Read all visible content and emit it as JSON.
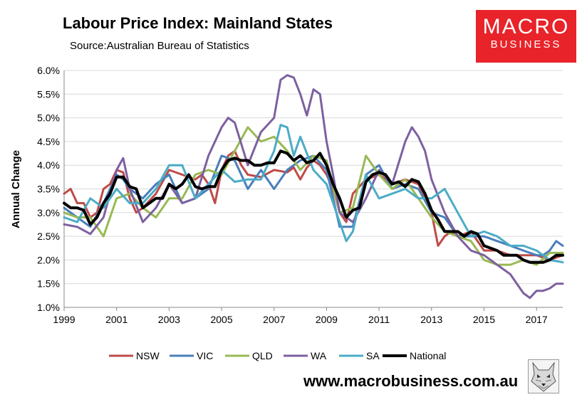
{
  "header": {
    "title": "Labour Price Index: Mainland States",
    "source": "Source:Australian Bureau of Statistics"
  },
  "logo": {
    "line1": "MACRO",
    "line2": "BUSINESS"
  },
  "footer": {
    "website": "www.macrobusiness.com.au",
    "mascot_icon": "wolf-sketch-icon"
  },
  "chart_data": {
    "type": "line",
    "title": "Labour Price Index: Mainland States",
    "ylabel": "Annual Change",
    "xlabel": "",
    "xlim": [
      1999,
      2018
    ],
    "ylim": [
      1.0,
      6.0
    ],
    "yticks": [
      "1.0%",
      "1.5%",
      "2.0%",
      "2.5%",
      "3.0%",
      "3.5%",
      "4.0%",
      "4.5%",
      "5.0%",
      "5.5%",
      "6.0%"
    ],
    "ytick_values": [
      1.0,
      1.5,
      2.0,
      2.5,
      3.0,
      3.5,
      4.0,
      4.5,
      5.0,
      5.5,
      6.0
    ],
    "xticks": [
      "1999",
      "2001",
      "2003",
      "2005",
      "2007",
      "2009",
      "2011",
      "2013",
      "2015",
      "2017"
    ],
    "xtick_values": [
      1999,
      2001,
      2003,
      2005,
      2007,
      2009,
      2011,
      2013,
      2015,
      2017
    ],
    "grid": "horizontal",
    "legend_position": "bottom",
    "series": [
      {
        "name": "NSW",
        "color": "#be4b48",
        "width": 3,
        "x": [
          1999,
          1999.25,
          1999.5,
          1999.75,
          2000,
          2000.25,
          2000.5,
          2000.75,
          2001,
          2001.25,
          2001.5,
          2001.75,
          2002,
          2002.5,
          2003,
          2003.5,
          2004,
          2004.25,
          2004.5,
          2004.75,
          2005,
          2005.25,
          2005.5,
          2005.75,
          2006,
          2006.5,
          2007,
          2007.5,
          2007.75,
          2008,
          2008.25,
          2008.5,
          2008.75,
          2009,
          2009.25,
          2009.5,
          2009.75,
          2010,
          2010.5,
          2011,
          2011.5,
          2012,
          2012.5,
          2013,
          2013.25,
          2013.5,
          2013.75,
          2014,
          2014.5,
          2015,
          2015.5,
          2016,
          2016.5,
          2017,
          2017.5,
          2018
        ],
        "values": [
          3.4,
          3.5,
          3.2,
          3.2,
          2.9,
          3.0,
          3.5,
          3.6,
          3.9,
          3.85,
          3.3,
          3.0,
          3.1,
          3.4,
          3.9,
          3.8,
          3.7,
          3.8,
          3.6,
          3.2,
          3.9,
          4.2,
          4.3,
          4.0,
          3.8,
          3.75,
          3.9,
          3.85,
          3.95,
          3.7,
          3.95,
          4.1,
          4.0,
          3.8,
          3.5,
          3.0,
          2.8,
          3.4,
          3.7,
          3.8,
          3.6,
          3.7,
          3.6,
          3.0,
          2.3,
          2.5,
          2.6,
          2.5,
          2.6,
          2.2,
          2.2,
          2.1,
          2.1,
          2.1,
          2.0,
          2.1
        ]
      },
      {
        "name": "VIC",
        "color": "#4a7ebb",
        "width": 3,
        "x": [
          1999,
          1999.5,
          2000,
          2000.5,
          2001,
          2001.25,
          2001.5,
          2002,
          2002.5,
          2003,
          2003.5,
          2004,
          2004.5,
          2005,
          2005.5,
          2006,
          2006.5,
          2007,
          2007.5,
          2008,
          2008.5,
          2009,
          2009.5,
          2010,
          2010.5,
          2011,
          2011.5,
          2012,
          2012.5,
          2013,
          2013.5,
          2014,
          2014.5,
          2015,
          2015.5,
          2016,
          2016.5,
          2017,
          2017.25,
          2017.5,
          2017.75,
          2018
        ],
        "values": [
          3.1,
          2.9,
          2.7,
          3.2,
          3.8,
          3.7,
          3.5,
          3.3,
          3.6,
          3.8,
          3.2,
          3.3,
          3.5,
          4.2,
          4.1,
          3.5,
          3.9,
          3.5,
          3.9,
          4.1,
          4.2,
          3.9,
          2.7,
          2.7,
          3.8,
          4.0,
          3.5,
          3.6,
          3.5,
          3.0,
          2.9,
          2.5,
          2.5,
          2.5,
          2.4,
          2.3,
          2.2,
          2.1,
          2.1,
          2.2,
          2.4,
          2.3
        ]
      },
      {
        "name": "QLD",
        "color": "#98b954",
        "width": 3,
        "x": [
          1999,
          1999.5,
          2000,
          2000.5,
          2001,
          2001.5,
          2002,
          2002.5,
          2003,
          2003.5,
          2004,
          2004.5,
          2005,
          2005.5,
          2006,
          2006.5,
          2007,
          2007.5,
          2008,
          2008.5,
          2009,
          2009.5,
          2010,
          2010.5,
          2011,
          2011.5,
          2012,
          2012.5,
          2013,
          2013.5,
          2014,
          2014.5,
          2015,
          2015.5,
          2016,
          2016.5,
          2017,
          2017.5,
          2018
        ],
        "values": [
          3.0,
          2.9,
          2.9,
          2.5,
          3.3,
          3.4,
          3.1,
          2.9,
          3.3,
          3.3,
          3.8,
          3.9,
          3.8,
          4.3,
          4.8,
          4.5,
          4.6,
          4.3,
          3.9,
          4.2,
          4.1,
          3.0,
          3.1,
          4.2,
          3.8,
          3.5,
          3.7,
          3.3,
          2.9,
          2.6,
          2.5,
          2.4,
          2.0,
          1.9,
          1.9,
          2.0,
          1.9,
          2.15,
          2.15
        ]
      },
      {
        "name": "WA",
        "color": "#7d60a0",
        "width": 3,
        "x": [
          1999,
          1999.5,
          2000,
          2000.5,
          2001,
          2001.25,
          2001.5,
          2002,
          2002.5,
          2003,
          2003.5,
          2004,
          2004.5,
          2005,
          2005.25,
          2005.5,
          2006,
          2006.5,
          2007,
          2007.25,
          2007.5,
          2007.75,
          2008,
          2008.25,
          2008.5,
          2008.75,
          2009,
          2009.25,
          2009.5,
          2010,
          2010.5,
          2011,
          2011.5,
          2012,
          2012.25,
          2012.5,
          2012.75,
          2013,
          2013.5,
          2014,
          2014.5,
          2015,
          2015.5,
          2016,
          2016.5,
          2016.75,
          2017,
          2017.25,
          2017.5,
          2017.75,
          2018
        ],
        "values": [
          2.75,
          2.7,
          2.55,
          2.9,
          3.9,
          4.15,
          3.5,
          2.8,
          3.1,
          3.6,
          3.2,
          3.3,
          4.2,
          4.8,
          5.0,
          4.9,
          4.0,
          4.7,
          5.0,
          5.8,
          5.9,
          5.85,
          5.5,
          5.05,
          5.6,
          5.5,
          4.5,
          3.8,
          3.0,
          2.8,
          3.3,
          3.9,
          3.6,
          4.5,
          4.8,
          4.6,
          4.3,
          3.7,
          3.0,
          2.5,
          2.2,
          2.1,
          1.9,
          1.7,
          1.3,
          1.2,
          1.35,
          1.35,
          1.4,
          1.5,
          1.5
        ]
      },
      {
        "name": "SA",
        "color": "#4bacc6",
        "width": 3,
        "x": [
          1999,
          1999.5,
          2000,
          2000.5,
          2001,
          2001.5,
          2002,
          2002.5,
          2003,
          2003.5,
          2004,
          2004.5,
          2005,
          2005.5,
          2006,
          2006.5,
          2007,
          2007.25,
          2007.5,
          2007.75,
          2008,
          2008.5,
          2009,
          2009.5,
          2009.75,
          2010,
          2010.5,
          2011,
          2011.5,
          2012,
          2012.5,
          2013,
          2013.5,
          2014,
          2014.5,
          2015,
          2015.5,
          2016,
          2016.5,
          2017,
          2017.5,
          2018
        ],
        "values": [
          2.9,
          2.8,
          3.3,
          3.1,
          3.5,
          3.2,
          3.2,
          3.5,
          4.0,
          4.0,
          3.3,
          3.6,
          3.9,
          3.65,
          3.7,
          3.7,
          4.3,
          4.85,
          4.8,
          4.2,
          4.6,
          3.9,
          3.6,
          2.8,
          2.4,
          2.6,
          3.8,
          3.3,
          3.4,
          3.5,
          3.3,
          3.3,
          3.5,
          3.0,
          2.5,
          2.6,
          2.5,
          2.3,
          2.3,
          2.2,
          2.0,
          1.95
        ]
      },
      {
        "name": "National",
        "color": "#000000",
        "width": 4,
        "x": [
          1999,
          1999.25,
          1999.5,
          1999.75,
          2000,
          2000.25,
          2000.5,
          2000.75,
          2001,
          2001.25,
          2001.5,
          2001.75,
          2002,
          2002.25,
          2002.5,
          2002.75,
          2003,
          2003.25,
          2003.5,
          2003.75,
          2004,
          2004.25,
          2004.5,
          2004.75,
          2005,
          2005.25,
          2005.5,
          2005.75,
          2006,
          2006.25,
          2006.5,
          2006.75,
          2007,
          2007.25,
          2007.5,
          2007.75,
          2008,
          2008.25,
          2008.5,
          2008.75,
          2009,
          2009.25,
          2009.5,
          2009.75,
          2010,
          2010.25,
          2010.5,
          2010.75,
          2011,
          2011.25,
          2011.5,
          2011.75,
          2012,
          2012.25,
          2012.5,
          2012.75,
          2013,
          2013.25,
          2013.5,
          2013.75,
          2014,
          2014.25,
          2014.5,
          2014.75,
          2015,
          2015.25,
          2015.5,
          2015.75,
          2016,
          2016.25,
          2016.5,
          2016.75,
          2017,
          2017.25,
          2017.5,
          2017.75,
          2018
        ],
        "values": [
          3.2,
          3.1,
          3.1,
          3.05,
          2.75,
          2.9,
          3.2,
          3.4,
          3.75,
          3.75,
          3.55,
          3.5,
          3.1,
          3.2,
          3.3,
          3.3,
          3.6,
          3.5,
          3.6,
          3.8,
          3.55,
          3.5,
          3.55,
          3.55,
          3.9,
          4.1,
          4.15,
          4.1,
          4.1,
          4.0,
          4.0,
          4.05,
          4.05,
          4.3,
          4.25,
          4.1,
          4.2,
          4.05,
          4.1,
          4.25,
          4.0,
          3.6,
          3.3,
          2.9,
          3.05,
          3.1,
          3.65,
          3.8,
          3.85,
          3.8,
          3.6,
          3.65,
          3.55,
          3.7,
          3.65,
          3.4,
          3.05,
          2.85,
          2.6,
          2.6,
          2.6,
          2.5,
          2.6,
          2.55,
          2.3,
          2.25,
          2.2,
          2.1,
          2.1,
          2.1,
          2.0,
          1.95,
          1.95,
          1.95,
          2.0,
          2.1,
          2.1
        ]
      }
    ]
  }
}
